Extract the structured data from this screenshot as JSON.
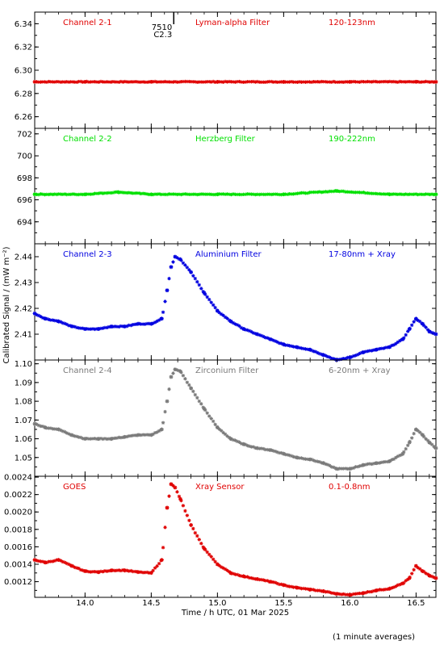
{
  "x_axis": {
    "label": "Time / h UTC, 01 Mar 2025",
    "range": [
      13.62,
      16.65
    ],
    "ticks": [
      14.0,
      14.5,
      15.0,
      15.5,
      16.0,
      16.5
    ],
    "tick_labels": [
      "14.0",
      "14.5",
      "15.0",
      "15.5",
      "16.0",
      "16.5"
    ]
  },
  "y_axis_label": "Calibrated Signal / (mW m⁻²)",
  "footer_note": "(1 minute averages)",
  "marker_annotation": {
    "x": 14.67,
    "line1": "7510",
    "line2": "C2.3"
  },
  "colors": {
    "red": "#e00000",
    "green": "#00e000",
    "blue": "#0000e0",
    "gray": "#7a7a7a"
  },
  "chart_data": [
    {
      "type": "scatter",
      "name_label": "Channel 2-1",
      "filter_label": "Lyman-alpha Filter",
      "range_label": "120-123nm",
      "color": "#e00000",
      "ylim": [
        6.25,
        6.35
      ],
      "yticks": [
        6.26,
        6.28,
        6.3,
        6.32,
        6.34
      ],
      "ytick_labels": [
        "6.26",
        "6.28",
        "6.30",
        "6.32",
        "6.34"
      ],
      "x": [
        13.62,
        14.0,
        14.5,
        15.0,
        15.5,
        16.0,
        16.5,
        16.65
      ],
      "values": [
        6.29,
        6.29,
        6.29,
        6.29,
        6.29,
        6.29,
        6.29,
        6.29
      ]
    },
    {
      "type": "scatter",
      "name_label": "Channel 2-2",
      "filter_label": "Herzberg Filter",
      "range_label": "190-222nm",
      "color": "#00e000",
      "ylim": [
        692.0,
        702.5
      ],
      "yticks": [
        694,
        696,
        698,
        700,
        702
      ],
      "ytick_labels": [
        "694",
        "696",
        "698",
        "700",
        "702"
      ],
      "x": [
        13.62,
        14.0,
        14.25,
        14.5,
        15.0,
        15.5,
        15.9,
        16.3,
        16.65
      ],
      "values": [
        696.5,
        696.5,
        696.7,
        696.5,
        696.5,
        696.5,
        696.8,
        696.5,
        696.5
      ]
    },
    {
      "type": "scatter",
      "name_label": "Channel 2-3",
      "filter_label": "Aluminium Filter",
      "range_label": "17-80nm + Xray",
      "color": "#0000e0",
      "ylim": [
        2.4,
        2.445
      ],
      "yticks": [
        2.41,
        2.42,
        2.43,
        2.44
      ],
      "ytick_labels": [
        "2.41",
        "2.42",
        "2.43",
        "2.44"
      ],
      "x": [
        13.62,
        13.7,
        13.8,
        13.9,
        14.0,
        14.1,
        14.2,
        14.3,
        14.4,
        14.5,
        14.58,
        14.62,
        14.65,
        14.68,
        14.72,
        14.8,
        14.9,
        15.0,
        15.1,
        15.2,
        15.3,
        15.4,
        15.5,
        15.6,
        15.7,
        15.8,
        15.9,
        16.0,
        16.1,
        16.2,
        16.3,
        16.4,
        16.45,
        16.5,
        16.55,
        16.6,
        16.65
      ],
      "values": [
        2.418,
        2.416,
        2.415,
        2.413,
        2.412,
        2.412,
        2.413,
        2.413,
        2.414,
        2.414,
        2.416,
        2.427,
        2.436,
        2.44,
        2.439,
        2.434,
        2.426,
        2.419,
        2.415,
        2.412,
        2.41,
        2.408,
        2.406,
        2.405,
        2.404,
        2.402,
        2.4,
        2.401,
        2.403,
        2.404,
        2.405,
        2.408,
        2.412,
        2.416,
        2.414,
        2.411,
        2.41
      ]
    },
    {
      "type": "scatter",
      "name_label": "Channel 2-4",
      "filter_label": "Zirconium Filter",
      "range_label": "6-20nm + Xray",
      "color": "#7a7a7a",
      "ylim": [
        1.04,
        1.102
      ],
      "yticks": [
        1.05,
        1.06,
        1.07,
        1.08,
        1.09,
        1.1
      ],
      "ytick_labels": [
        "1.05",
        "1.06",
        "1.07",
        "1.08",
        "1.09",
        "1.10"
      ],
      "x": [
        13.62,
        13.7,
        13.8,
        13.9,
        14.0,
        14.1,
        14.2,
        14.3,
        14.4,
        14.5,
        14.58,
        14.62,
        14.65,
        14.68,
        14.72,
        14.8,
        14.9,
        15.0,
        15.1,
        15.2,
        15.3,
        15.4,
        15.5,
        15.6,
        15.7,
        15.8,
        15.9,
        16.0,
        16.1,
        16.2,
        16.3,
        16.4,
        16.45,
        16.5,
        16.55,
        16.6,
        16.65
      ],
      "values": [
        1.068,
        1.066,
        1.065,
        1.062,
        1.06,
        1.06,
        1.06,
        1.061,
        1.062,
        1.062,
        1.065,
        1.08,
        1.093,
        1.097,
        1.096,
        1.087,
        1.076,
        1.066,
        1.06,
        1.057,
        1.055,
        1.054,
        1.052,
        1.05,
        1.049,
        1.047,
        1.044,
        1.044,
        1.046,
        1.047,
        1.048,
        1.052,
        1.058,
        1.065,
        1.062,
        1.058,
        1.055
      ]
    },
    {
      "type": "scatter",
      "name_label": "GOES",
      "filter_label": "Xray Sensor",
      "range_label": "0.1-0.8nm",
      "color": "#e00000",
      "ylim": [
        0.00102,
        0.00241
      ],
      "yticks": [
        0.0012,
        0.0014,
        0.0016,
        0.0018,
        0.002,
        0.0022,
        0.0024
      ],
      "ytick_labels": [
        "0.0012",
        "0.0014",
        "0.0016",
        "0.0018",
        "0.0020",
        "0.0022",
        "0.0024"
      ],
      "x": [
        13.62,
        13.7,
        13.8,
        13.9,
        14.0,
        14.1,
        14.2,
        14.3,
        14.4,
        14.5,
        14.58,
        14.62,
        14.65,
        14.68,
        14.72,
        14.8,
        14.9,
        15.0,
        15.1,
        15.2,
        15.3,
        15.4,
        15.5,
        15.6,
        15.7,
        15.8,
        15.9,
        16.0,
        16.1,
        16.2,
        16.3,
        16.4,
        16.45,
        16.5,
        16.55,
        16.6,
        16.65
      ],
      "values": [
        0.00145,
        0.00142,
        0.00145,
        0.00138,
        0.00132,
        0.00131,
        0.00133,
        0.00133,
        0.00131,
        0.0013,
        0.00145,
        0.00205,
        0.00232,
        0.00228,
        0.00215,
        0.00185,
        0.00158,
        0.0014,
        0.0013,
        0.00126,
        0.00123,
        0.0012,
        0.00116,
        0.00113,
        0.00111,
        0.00109,
        0.00106,
        0.00105,
        0.00107,
        0.0011,
        0.00112,
        0.00118,
        0.00124,
        0.00138,
        0.00132,
        0.00127,
        0.00124
      ]
    }
  ]
}
